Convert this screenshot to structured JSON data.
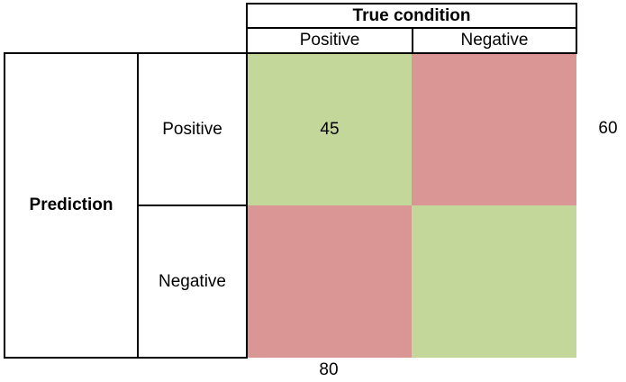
{
  "colors": {
    "true_cell": "#c4d79b",
    "false_cell": "#da9694",
    "border": "#000000"
  },
  "header": {
    "title": "True condition",
    "columns": [
      "Positive",
      "Negative"
    ]
  },
  "rows": {
    "title": "Prediction",
    "labels": [
      "Positive",
      "Negative"
    ]
  },
  "cells": [
    [
      "45",
      ""
    ],
    [
      "",
      ""
    ]
  ],
  "row_totals": [
    "60",
    ""
  ],
  "column_totals": [
    "80",
    ""
  ]
}
